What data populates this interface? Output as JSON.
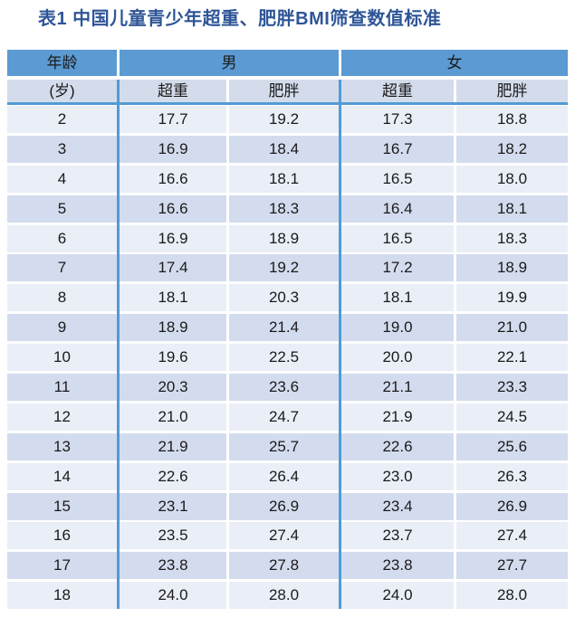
{
  "title": "表1 中国儿童青少年超重、肥胖BMI筛查数值标准",
  "colors": {
    "title_text": "#2e5597",
    "header_fill": "#5b9ad2",
    "divider_blue": "#519bd5",
    "subheader_fill": "#d4dcec",
    "row_light": "#e9eef7",
    "row_dark": "#d3dcee",
    "body_text": "#1a1a1a",
    "page_background": "#ffffff"
  },
  "chart_data": {
    "type": "table",
    "title": "表1 中国儿童青少年超重、肥胖BMI筛查数值标准",
    "columns": {
      "age_label": "年龄",
      "age_unit": "(岁)",
      "group_labels": [
        "男",
        "女"
      ],
      "sub_labels": [
        "超重",
        "肥胖",
        "超重",
        "肥胖"
      ]
    },
    "rows": [
      {
        "age": 2,
        "male_overweight": 17.7,
        "male_obese": 19.2,
        "female_overweight": 17.3,
        "female_obese": 18.8
      },
      {
        "age": 3,
        "male_overweight": 16.9,
        "male_obese": 18.4,
        "female_overweight": 16.7,
        "female_obese": 18.2
      },
      {
        "age": 4,
        "male_overweight": 16.6,
        "male_obese": 18.1,
        "female_overweight": 16.5,
        "female_obese": 18.0
      },
      {
        "age": 5,
        "male_overweight": 16.6,
        "male_obese": 18.3,
        "female_overweight": 16.4,
        "female_obese": 18.1
      },
      {
        "age": 6,
        "male_overweight": 16.9,
        "male_obese": 18.9,
        "female_overweight": 16.5,
        "female_obese": 18.3
      },
      {
        "age": 7,
        "male_overweight": 17.4,
        "male_obese": 19.2,
        "female_overweight": 17.2,
        "female_obese": 18.9
      },
      {
        "age": 8,
        "male_overweight": 18.1,
        "male_obese": 20.3,
        "female_overweight": 18.1,
        "female_obese": 19.9
      },
      {
        "age": 9,
        "male_overweight": 18.9,
        "male_obese": 21.4,
        "female_overweight": 19.0,
        "female_obese": 21.0
      },
      {
        "age": 10,
        "male_overweight": 19.6,
        "male_obese": 22.5,
        "female_overweight": 20.0,
        "female_obese": 22.1
      },
      {
        "age": 11,
        "male_overweight": 20.3,
        "male_obese": 23.6,
        "female_overweight": 21.1,
        "female_obese": 23.3
      },
      {
        "age": 12,
        "male_overweight": 21.0,
        "male_obese": 24.7,
        "female_overweight": 21.9,
        "female_obese": 24.5
      },
      {
        "age": 13,
        "male_overweight": 21.9,
        "male_obese": 25.7,
        "female_overweight": 22.6,
        "female_obese": 25.6
      },
      {
        "age": 14,
        "male_overweight": 22.6,
        "male_obese": 26.4,
        "female_overweight": 23.0,
        "female_obese": 26.3
      },
      {
        "age": 15,
        "male_overweight": 23.1,
        "male_obese": 26.9,
        "female_overweight": 23.4,
        "female_obese": 26.9
      },
      {
        "age": 16,
        "male_overweight": 23.5,
        "male_obese": 27.4,
        "female_overweight": 23.7,
        "female_obese": 27.4
      },
      {
        "age": 17,
        "male_overweight": 23.8,
        "male_obese": 27.8,
        "female_overweight": 23.8,
        "female_obese": 27.7
      },
      {
        "age": 18,
        "male_overweight": 24.0,
        "male_obese": 28.0,
        "female_overweight": 24.0,
        "female_obese": 28.0
      }
    ]
  }
}
